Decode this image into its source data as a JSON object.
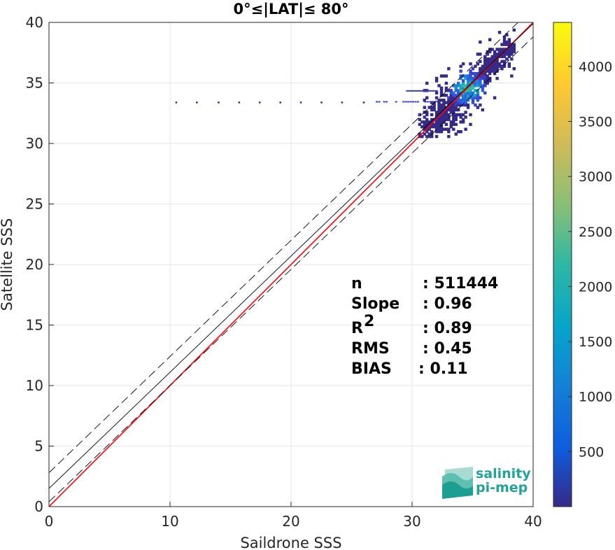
{
  "chart_data": {
    "type": "heatmap",
    "title": "0°≤|LAT|≤ 80°",
    "xlabel": "Saildrone SSS",
    "ylabel": "Satellite SSS",
    "xlim": [
      0,
      40
    ],
    "ylim": [
      0,
      40
    ],
    "xticks": [
      "0",
      "10",
      "20",
      "30",
      "40"
    ],
    "yticks": [
      "0",
      "5",
      "10",
      "15",
      "20",
      "25",
      "30",
      "35",
      "40"
    ],
    "grid": true,
    "colorbar": {
      "range": [
        0,
        4400
      ],
      "ticks": [
        "500",
        "1000",
        "1500",
        "2000",
        "2500",
        "3000",
        "3500",
        "4000"
      ],
      "colormap": "parula"
    },
    "density_summary": {
      "main_cluster_center": [
        33.5,
        33.5
      ],
      "main_cluster_x_range": [
        30.5,
        38.5
      ],
      "main_cluster_y_range": [
        30.5,
        39.5
      ],
      "peak_density_location": [
        34.5,
        34.5
      ],
      "outlier_row_satellite_value": 33.4,
      "outlier_row_saildrone_x": [
        10.5,
        12.2,
        14.0,
        15.7,
        17.4,
        19.1,
        20.8,
        22.5,
        24.2,
        26.0
      ]
    },
    "lines": [
      {
        "name": "one-to-one",
        "color": "#ff0000",
        "style": "solid",
        "points": [
          [
            0,
            0
          ],
          [
            40,
            40
          ]
        ]
      },
      {
        "name": "regression",
        "color": "#000000",
        "style": "solid",
        "points": [
          [
            0,
            1.5
          ],
          [
            40,
            39.9
          ]
        ]
      },
      {
        "name": "regression-upper",
        "color": "#000000",
        "style": "dashed",
        "points": [
          [
            0,
            2.8
          ],
          [
            40,
            41.2
          ]
        ]
      },
      {
        "name": "regression-lower",
        "color": "#000000",
        "style": "dashed",
        "points": [
          [
            0,
            0.4
          ],
          [
            40,
            38.8
          ]
        ]
      }
    ],
    "stats": [
      {
        "label": "n",
        "value": ": 511444"
      },
      {
        "label": "Slope",
        "value": ": 0.96"
      },
      {
        "label": "R",
        "sup": "2",
        "value": ": 0.89"
      },
      {
        "label": "RMS",
        "value": ": 0.45"
      },
      {
        "label": "BIAS",
        "value": ": 0.11"
      }
    ]
  },
  "logo": {
    "line1": "salinity",
    "line2": "pi-mep"
  },
  "colors": {
    "one_to_one": "#ff0000",
    "regression": "#000000",
    "grid": "#e6e6e6",
    "logo_teal": "#1fa39a"
  }
}
